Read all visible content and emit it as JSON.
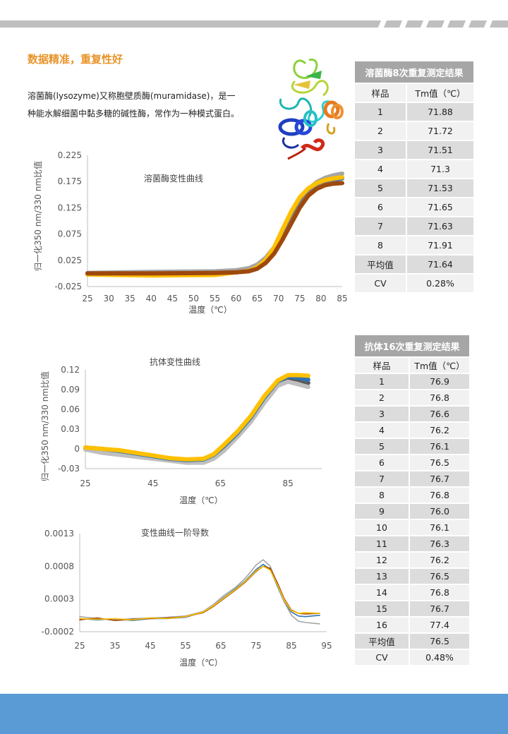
{
  "section_title": "数据精准，重复性好",
  "intro": {
    "line1": "溶菌酶(lysozyme)又称胞壁质酶(muramidase)，是一",
    "line2": "种能水解细菌中黏多糖的碱性酶，常作为一种模式蛋白。"
  },
  "colors": {
    "accent": "#e8942a",
    "bottom_band": "#5b9bd5",
    "table_header": "#a6a6a6",
    "series": [
      "#2e75b6",
      "#7f7f7f",
      "#a5a5a5",
      "#ffc000",
      "#264478",
      "#9e480e",
      "#636363",
      "#4472c4"
    ]
  },
  "table_lysozyme": {
    "title": "溶菌酶8次重复测定结果",
    "col_sample": "样品",
    "col_tm": "Tm值（℃）",
    "rows": [
      {
        "sample": "1",
        "tm": "71.88"
      },
      {
        "sample": "2",
        "tm": "71.72"
      },
      {
        "sample": "3",
        "tm": "71.51"
      },
      {
        "sample": "4",
        "tm": "71.3"
      },
      {
        "sample": "5",
        "tm": "71.53"
      },
      {
        "sample": "6",
        "tm": "71.65"
      },
      {
        "sample": "7",
        "tm": "71.63"
      },
      {
        "sample": "8",
        "tm": "71.91"
      },
      {
        "sample": "平均值",
        "tm": "71.64"
      },
      {
        "sample": "CV",
        "tm": "0.28%"
      }
    ]
  },
  "table_antibody": {
    "title": "抗体16次重复测定结果",
    "col_sample": "样品",
    "col_tm": "Tm值（℃）",
    "rows": [
      {
        "sample": "1",
        "tm": "76.9"
      },
      {
        "sample": "2",
        "tm": "76.8"
      },
      {
        "sample": "3",
        "tm": "76.6"
      },
      {
        "sample": "4",
        "tm": "76.2"
      },
      {
        "sample": "5",
        "tm": "76.1"
      },
      {
        "sample": "6",
        "tm": "76.5"
      },
      {
        "sample": "7",
        "tm": "76.7"
      },
      {
        "sample": "8",
        "tm": "76.8"
      },
      {
        "sample": "9",
        "tm": "76.0"
      },
      {
        "sample": "10",
        "tm": "76.1"
      },
      {
        "sample": "11",
        "tm": "76.3"
      },
      {
        "sample": "12",
        "tm": "76.2"
      },
      {
        "sample": "13",
        "tm": "76.5"
      },
      {
        "sample": "14",
        "tm": "76.8"
      },
      {
        "sample": "15",
        "tm": "76.7"
      },
      {
        "sample": "16",
        "tm": "77.4"
      },
      {
        "sample": "平均值",
        "tm": "76.5"
      },
      {
        "sample": "CV",
        "tm": "0.48%"
      }
    ]
  },
  "chart_data": [
    {
      "type": "line",
      "title": "溶菌酶变性曲线",
      "xlabel": "温度（℃）",
      "ylabel": "归一化350 nm/330 nm比值",
      "xlim": [
        25,
        85
      ],
      "ylim": [
        -0.025,
        0.225
      ],
      "xticks": [
        "25",
        "30",
        "35",
        "40",
        "45",
        "50",
        "55",
        "60",
        "65",
        "70",
        "75",
        "80",
        "85"
      ],
      "yticks": [
        "-0.025",
        "0.025",
        "0.075",
        "0.125",
        "0.175",
        "0.225"
      ],
      "grid": false,
      "series": [
        {
          "x": [
            25,
            40,
            55,
            60,
            63,
            65,
            67,
            69,
            71,
            73,
            75,
            77,
            79,
            81,
            83,
            85
          ],
          "y": [
            0.0,
            0.001,
            0.002,
            0.003,
            0.006,
            0.012,
            0.025,
            0.045,
            0.075,
            0.105,
            0.135,
            0.155,
            0.167,
            0.174,
            0.178,
            0.181
          ]
        },
        {
          "x": [
            25,
            40,
            55,
            60,
            63,
            65,
            67,
            69,
            71,
            73,
            75,
            77,
            79,
            81,
            83,
            85
          ],
          "y": [
            0.001,
            0.003,
            0.004,
            0.006,
            0.01,
            0.017,
            0.03,
            0.05,
            0.078,
            0.108,
            0.138,
            0.16,
            0.174,
            0.182,
            0.187,
            0.19
          ]
        },
        {
          "x": [
            25,
            40,
            55,
            60,
            63,
            65,
            67,
            69,
            71,
            73,
            75,
            77,
            79,
            81,
            83,
            85
          ],
          "y": [
            -0.001,
            0.0,
            0.001,
            0.002,
            0.005,
            0.011,
            0.023,
            0.043,
            0.072,
            0.102,
            0.132,
            0.153,
            0.166,
            0.174,
            0.179,
            0.183
          ]
        },
        {
          "x": [
            25,
            40,
            55,
            60,
            63,
            65,
            67,
            69,
            71,
            73,
            75,
            77,
            79,
            81,
            83,
            85
          ],
          "y": [
            -0.002,
            -0.004,
            -0.003,
            0.002,
            0.005,
            0.012,
            0.026,
            0.05,
            0.085,
            0.118,
            0.145,
            0.162,
            0.172,
            0.178,
            0.181,
            0.183
          ]
        },
        {
          "x": [
            25,
            40,
            55,
            60,
            63,
            65,
            67,
            69,
            71,
            73,
            75,
            77,
            79,
            81,
            83,
            85
          ],
          "y": [
            0.0,
            0.0,
            0.001,
            0.002,
            0.004,
            0.009,
            0.02,
            0.038,
            0.065,
            0.095,
            0.125,
            0.148,
            0.161,
            0.168,
            0.171,
            0.172
          ]
        }
      ]
    },
    {
      "type": "line",
      "title": "抗体变性曲线",
      "xlabel": "温度（℃）",
      "ylabel": "归一化350 nm/330 nm比值",
      "xlim": [
        25,
        95
      ],
      "ylim": [
        -0.03,
        0.12
      ],
      "xticks": [
        "25",
        "45",
        "65",
        "85"
      ],
      "yticks": [
        "-0.03",
        "0",
        "0.03",
        "0.06",
        "0.09",
        "0.12"
      ],
      "grid": false,
      "series": [
        {
          "x": [
            25,
            30,
            35,
            40,
            45,
            50,
            55,
            60,
            63,
            66,
            70,
            74,
            78,
            82,
            85,
            88,
            91
          ],
          "y": [
            0.001,
            -0.002,
            -0.004,
            -0.008,
            -0.012,
            -0.016,
            -0.018,
            -0.017,
            -0.011,
            0.002,
            0.022,
            0.045,
            0.075,
            0.1,
            0.108,
            0.105,
            0.1
          ]
        },
        {
          "x": [
            25,
            30,
            35,
            40,
            45,
            50,
            55,
            60,
            63,
            66,
            70,
            74,
            78,
            82,
            85,
            88,
            91
          ],
          "y": [
            -0.001,
            -0.006,
            -0.009,
            -0.012,
            -0.015,
            -0.018,
            -0.021,
            -0.021,
            -0.015,
            -0.003,
            0.018,
            0.041,
            0.07,
            0.096,
            0.102,
            0.098,
            0.094
          ]
        },
        {
          "x": [
            25,
            30,
            35,
            40,
            45,
            50,
            55,
            60,
            63,
            66,
            70,
            74,
            78,
            82,
            85,
            88,
            91
          ],
          "y": [
            0.002,
            0.0,
            -0.003,
            -0.007,
            -0.011,
            -0.015,
            -0.017,
            -0.016,
            -0.009,
            0.004,
            0.024,
            0.048,
            0.078,
            0.103,
            0.11,
            0.108,
            0.105
          ]
        },
        {
          "x": [
            25,
            30,
            35,
            40,
            45,
            50,
            55,
            60,
            63,
            66,
            70,
            74,
            78,
            82,
            85,
            88,
            91
          ],
          "y": [
            0.002,
            0.0,
            -0.002,
            -0.006,
            -0.01,
            -0.014,
            -0.016,
            -0.015,
            -0.008,
            0.006,
            0.026,
            0.05,
            0.08,
            0.104,
            0.112,
            0.112,
            0.111
          ]
        }
      ]
    },
    {
      "type": "line",
      "title": "变性曲线一阶导数",
      "xlabel": "温度（℃）",
      "ylabel": "",
      "xlim": [
        25,
        95
      ],
      "ylim": [
        -0.0002,
        0.0013
      ],
      "xticks": [
        "25",
        "35",
        "45",
        "55",
        "65",
        "75",
        "85",
        "95"
      ],
      "yticks": [
        "-0.0002",
        "0.0003",
        "0.0008",
        "0.0013"
      ],
      "grid": false,
      "series": [
        {
          "x": [
            25,
            30,
            35,
            40,
            45,
            50,
            55,
            60,
            63,
            66,
            69,
            72,
            75,
            77,
            79,
            81,
            83,
            85,
            87,
            89,
            93
          ],
          "y": [
            0.0,
            -2e-05,
            0.0,
            -3e-05,
            0.0,
            0.0,
            2e-05,
            0.0001,
            0.0002,
            0.00033,
            0.00045,
            0.00058,
            0.00075,
            0.00083,
            0.00075,
            0.0005,
            0.00025,
            0.0001,
            4e-05,
            3e-05,
            5e-05
          ]
        },
        {
          "x": [
            25,
            30,
            35,
            40,
            45,
            50,
            55,
            60,
            63,
            66,
            69,
            72,
            75,
            77,
            79,
            81,
            83,
            85,
            87,
            89,
            93
          ],
          "y": [
            3e-05,
            0.0,
            -2e-05,
            0.0,
            1e-05,
            2e-05,
            4e-05,
            0.00011,
            0.00022,
            0.00036,
            0.00047,
            0.00062,
            0.00082,
            0.0009,
            0.0008,
            0.00053,
            0.00025,
            5e-05,
            -4e-05,
            -6e-05,
            -8e-05
          ]
        },
        {
          "x": [
            25,
            30,
            35,
            40,
            45,
            50,
            55,
            60,
            63,
            66,
            69,
            72,
            75,
            77,
            79,
            81,
            83,
            85,
            87,
            89,
            93
          ],
          "y": [
            -2e-05,
            1e-05,
            -3e-05,
            -1e-05,
            0.0,
            1e-05,
            3e-05,
            9e-05,
            0.00019,
            0.00031,
            0.00043,
            0.00056,
            0.00072,
            0.0008,
            0.00077,
            0.00055,
            0.0003,
            0.00013,
            8e-05,
            7e-05,
            8e-05
          ]
        },
        {
          "x": [
            25,
            30,
            35,
            40,
            45,
            50,
            55,
            60,
            63,
            66,
            69,
            72,
            75,
            77,
            79,
            81,
            83,
            85,
            87,
            89,
            93
          ],
          "y": [
            0.0,
            -1e-05,
            0.0,
            -2e-05,
            1e-05,
            0.0,
            3e-05,
            0.0001,
            0.0002,
            0.00032,
            0.00044,
            0.00057,
            0.00073,
            0.0008,
            0.00074,
            0.00052,
            0.00028,
            0.00012,
            8e-05,
            9e-05,
            8e-05
          ]
        }
      ]
    }
  ]
}
